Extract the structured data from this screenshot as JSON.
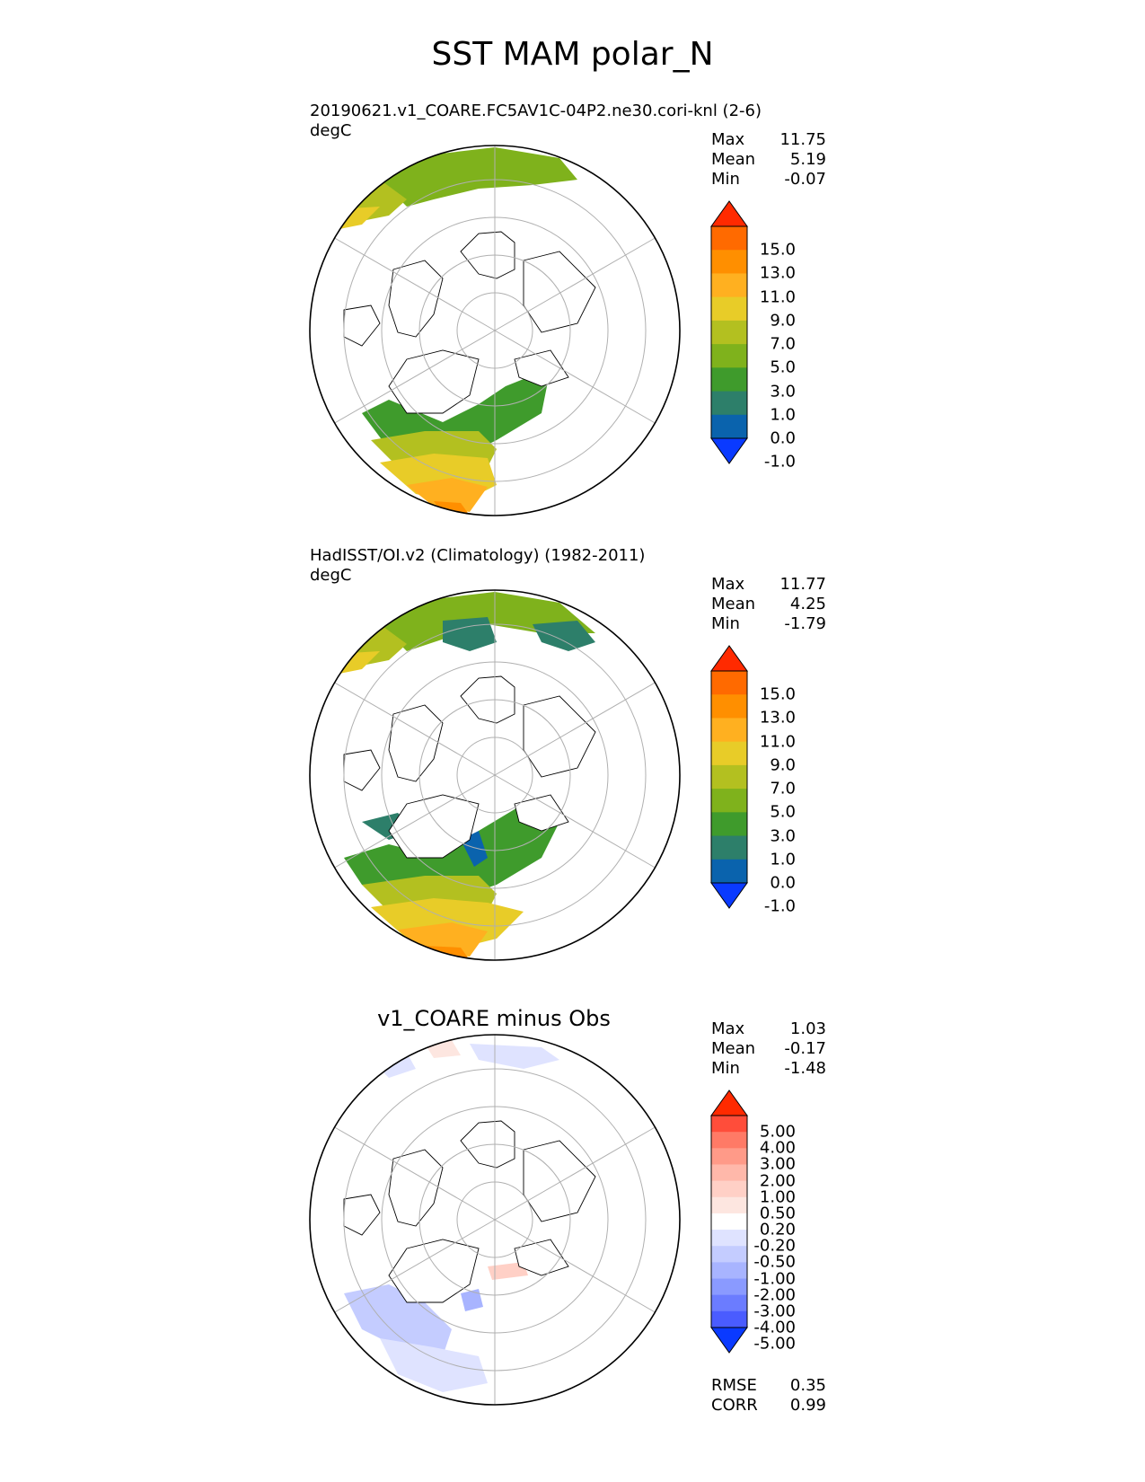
{
  "title": "SST MAM polar_N",
  "panels": [
    {
      "title": "20190621.v1_COARE.FC5AV1C-04P2.ne30.cori-knl (2-6)",
      "units": "degC",
      "stats": {
        "max_label": "Max",
        "max": "11.75",
        "mean_label": "Mean",
        "mean": "5.19",
        "min_label": "Min",
        "min": "-0.07"
      },
      "colorbar": {
        "labels": [
          "15.0",
          "13.0",
          "11.0",
          "9.0",
          "7.0",
          "5.0",
          "3.0",
          "1.0",
          "0.0",
          "-1.0"
        ],
        "colors": [
          "#ff2a00",
          "#ff6a00",
          "#ff8f00",
          "#ffb020",
          "#e8cc28",
          "#b3c020",
          "#7fb21c",
          "#3f9b2c",
          "#2d7f6a",
          "#0a63ad",
          "#0a3aff"
        ],
        "over_color": "#ff2a00",
        "under_color": "#0a3aff"
      }
    },
    {
      "title": "HadISST/OI.v2 (Climatology) (1982-2011)",
      "units": "degC",
      "stats": {
        "max_label": "Max",
        "max": "11.77",
        "mean_label": "Mean",
        "mean": "4.25",
        "min_label": "Min",
        "min": "-1.79"
      },
      "colorbar": {
        "labels": [
          "15.0",
          "13.0",
          "11.0",
          "9.0",
          "7.0",
          "5.0",
          "3.0",
          "1.0",
          "0.0",
          "-1.0"
        ],
        "colors": [
          "#ff2a00",
          "#ff6a00",
          "#ff8f00",
          "#ffb020",
          "#e8cc28",
          "#b3c020",
          "#7fb21c",
          "#3f9b2c",
          "#2d7f6a",
          "#0a63ad",
          "#0a3aff"
        ],
        "over_color": "#ff2a00",
        "under_color": "#0a3aff"
      }
    },
    {
      "title": "v1_COARE minus Obs",
      "units": "",
      "stats": {
        "max_label": "Max",
        "max": "1.03",
        "mean_label": "Mean",
        "mean": "-0.17",
        "min_label": "Min",
        "min": "-1.48"
      },
      "colorbar": {
        "labels": [
          "5.00",
          "4.00",
          "3.00",
          "2.00",
          "1.00",
          "0.50",
          "0.20",
          "-0.20",
          "-0.50",
          "-1.00",
          "-2.00",
          "-3.00",
          "-4.00",
          "-5.00"
        ],
        "colors": [
          "#ff2a00",
          "#ff4d3a",
          "#ff7a66",
          "#ff9a88",
          "#ffb8aa",
          "#ffd0c6",
          "#fde6e0",
          "#ffffff",
          "#dfe3ff",
          "#c4ccff",
          "#a8b4ff",
          "#8a9aff",
          "#6b7cff",
          "#4a5cff",
          "#0a3aff"
        ],
        "over_color": "#ff2a00",
        "under_color": "#0a3aff"
      },
      "footer": {
        "rmse_label": "RMSE",
        "rmse": "0.35",
        "corr_label": "CORR",
        "corr": "0.99"
      }
    }
  ]
}
